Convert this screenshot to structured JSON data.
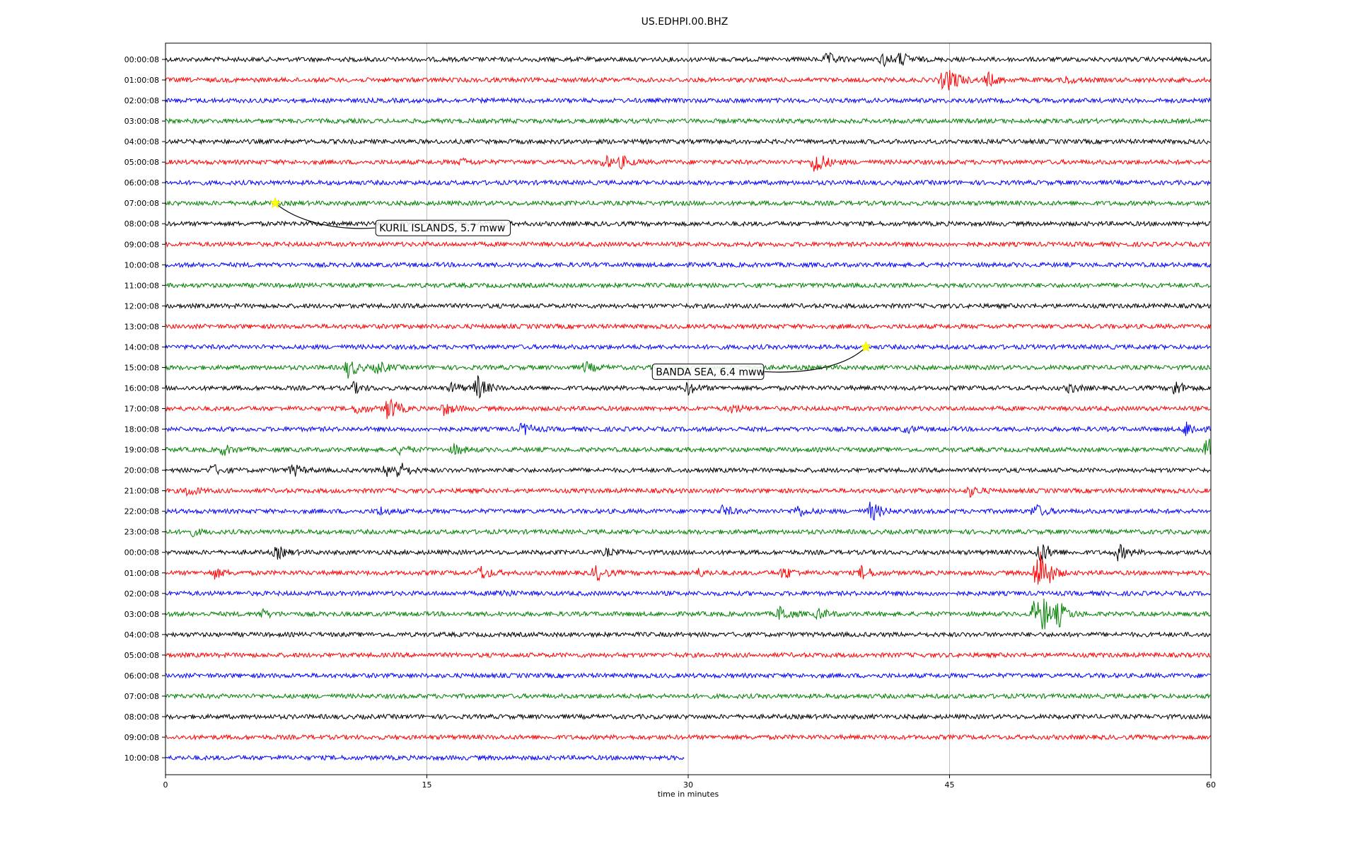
{
  "chart_data": {
    "type": "line",
    "title": "US.EDHPI.00.BHZ",
    "xlabel": "time in minutes",
    "ylabel": "",
    "xlim": [
      0,
      60
    ],
    "x_ticks": [
      0,
      15,
      30,
      45,
      60
    ],
    "x_tick_labels": [
      "0",
      "15",
      "30",
      "45",
      "60"
    ],
    "grid": "vertical lines at x ticks",
    "colors": [
      "#000000",
      "#ff0000",
      "#0000ff",
      "#008000"
    ],
    "row_labels": [
      "00:00:08",
      "01:00:08",
      "02:00:08",
      "03:00:08",
      "04:00:08",
      "05:00:08",
      "06:00:08",
      "07:00:08",
      "08:00:08",
      "09:00:08",
      "10:00:08",
      "11:00:08",
      "12:00:08",
      "13:00:08",
      "14:00:08",
      "15:00:08",
      "16:00:08",
      "17:00:08",
      "18:00:08",
      "19:00:08",
      "20:00:08",
      "21:00:08",
      "22:00:08",
      "23:00:08",
      "00:00:08",
      "01:00:08",
      "02:00:08",
      "03:00:08",
      "04:00:08",
      "05:00:08",
      "06:00:08",
      "07:00:08",
      "08:00:08",
      "09:00:08",
      "10:00:08"
    ],
    "last_row_end_minute": 29.8,
    "events": [
      {
        "row": 0,
        "minutes": [
          38,
          41.2,
          42.2
        ],
        "amp": [
          0.6,
          0.6,
          0.6
        ]
      },
      {
        "row": 1,
        "minutes": [
          44.6,
          45.1,
          47.2,
          51.7
        ],
        "amp": [
          0.8,
          0.9,
          0.7,
          0.3
        ]
      },
      {
        "row": 5,
        "minutes": [
          17,
          25.2,
          26.2,
          37.3
        ],
        "amp": [
          0.3,
          0.6,
          0.5,
          1.4
        ]
      },
      {
        "row": 15,
        "minutes": [
          10.5,
          12.2,
          24.1
        ],
        "amp": [
          1.0,
          0.6,
          0.5
        ]
      },
      {
        "row": 16,
        "minutes": [
          10.8,
          16.5,
          17.9,
          30,
          51.9,
          57.9
        ],
        "amp": [
          0.5,
          0.5,
          1.2,
          0.6,
          0.4,
          0.8
        ]
      },
      {
        "row": 17,
        "minutes": [
          11,
          12.8,
          16,
          32.5
        ],
        "amp": [
          0.5,
          1.3,
          0.6,
          0.4
        ]
      },
      {
        "row": 18,
        "minutes": [
          20.5,
          42.5,
          58.6
        ],
        "amp": [
          0.6,
          0.3,
          0.8
        ]
      },
      {
        "row": 19,
        "minutes": [
          3.3,
          13.5,
          16.6,
          59.8
        ],
        "amp": [
          0.5,
          0.4,
          0.5,
          1.2
        ]
      },
      {
        "row": 20,
        "minutes": [
          2.7,
          7.3,
          12.7,
          13.4
        ],
        "amp": [
          0.5,
          0.6,
          0.6,
          0.7
        ]
      },
      {
        "row": 21,
        "minutes": [
          1.3,
          46.2
        ],
        "amp": [
          0.5,
          0.5
        ]
      },
      {
        "row": 22,
        "minutes": [
          12.3,
          32,
          36.2,
          40.5,
          49.9
        ],
        "amp": [
          0.4,
          0.5,
          0.6,
          1.0,
          0.7
        ]
      },
      {
        "row": 23,
        "minutes": [
          1.4
        ],
        "amp": [
          0.4
        ]
      },
      {
        "row": 24,
        "minutes": [
          6.4,
          25.3,
          50.2,
          54.7
        ],
        "amp": [
          0.6,
          0.3,
          1.2,
          0.8
        ]
      },
      {
        "row": 25,
        "minutes": [
          2.8,
          18.1,
          24.7,
          30.5,
          35.5,
          40,
          50,
          50.3
        ],
        "amp": [
          0.5,
          0.7,
          0.8,
          0.4,
          0.6,
          0.7,
          1.8,
          1.4
        ]
      },
      {
        "row": 26,
        "minutes": [
          19.2
        ],
        "amp": [
          0.4
        ]
      },
      {
        "row": 27,
        "minutes": [
          5.5,
          35.3,
          37.5,
          49.9,
          50.4,
          51.3
        ],
        "amp": [
          0.4,
          0.8,
          0.5,
          1.5,
          1.3,
          1.0
        ]
      }
    ],
    "annotations": [
      {
        "text": "KURIL ISLANDS, 5.7 mww",
        "row": 7,
        "minute": 6.3
      },
      {
        "text": "BANDA SEA, 6.4 mww",
        "row": 14,
        "minute": 40.2
      }
    ]
  }
}
